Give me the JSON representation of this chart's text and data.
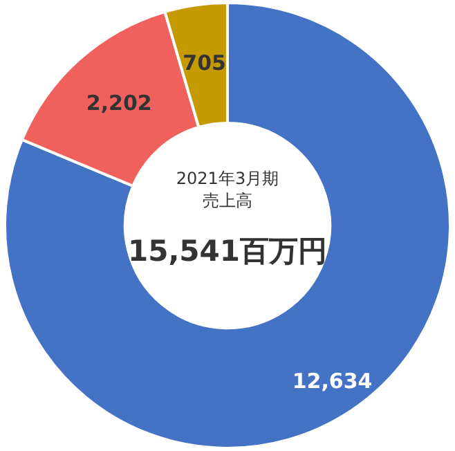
{
  "chart_data": {
    "type": "donut",
    "title": "2021年3月期",
    "subtitle": "売上高",
    "annotations": [
      "15,541百万円"
    ],
    "categories": [
      null,
      null,
      null
    ],
    "values": [
      12634,
      2202,
      705
    ],
    "value_labels": [
      "12,634",
      "2,202",
      "705"
    ],
    "colors": [
      "#4472c4",
      "#f0605d",
      "#c49a00"
    ],
    "legend": false
  }
}
